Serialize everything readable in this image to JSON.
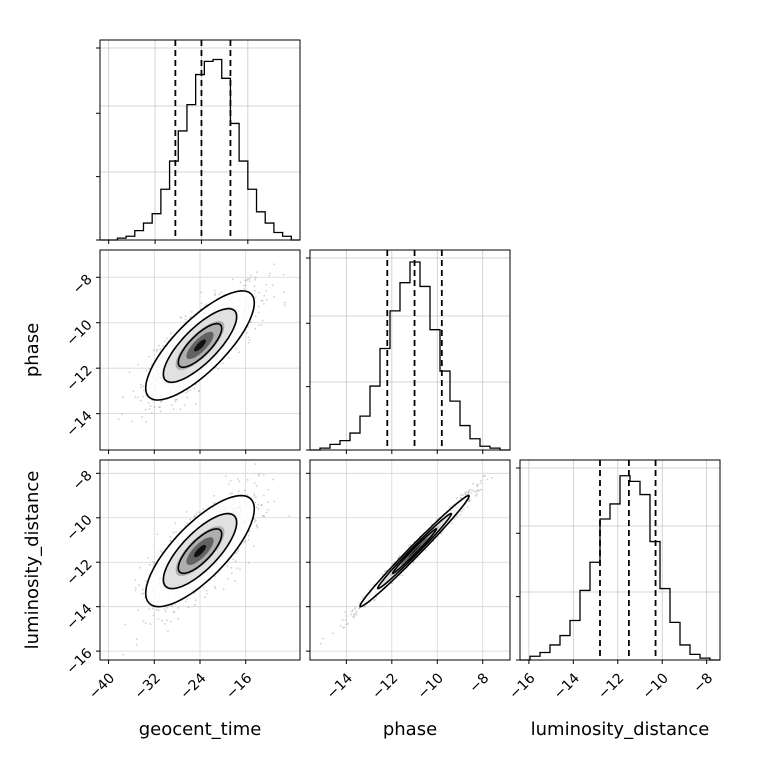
{
  "chart_data": {
    "type": "corner",
    "parameters": [
      "geocent_time",
      "phase",
      "luminosity_distance"
    ],
    "axis_labels": {
      "x": [
        "geocent_time",
        "phase",
        "luminosity_distance"
      ],
      "y": [
        "",
        "phase",
        "luminosity_distance"
      ]
    },
    "ranges": {
      "geocent_time": [
        -41.5,
        -6.5
      ],
      "phase": [
        -15.6,
        -6.8
      ],
      "luminosity_distance": [
        -16.4,
        -7.4
      ]
    },
    "ticks": {
      "geocent_time": [
        -40,
        -32,
        -24,
        -16
      ],
      "phase": [
        -14,
        -12,
        -10,
        -8
      ],
      "luminosity_distance": [
        -16,
        -14,
        -12,
        -10,
        -8
      ]
    },
    "diag_ticks": {
      "geocent_time": [
        -40,
        -32,
        -24,
        -16
      ],
      "phase": [
        -14,
        -12,
        -10,
        -8
      ],
      "luminosity_distance": [
        -16,
        -14,
        -12,
        -10,
        -8
      ]
    },
    "quantiles": {
      "geocent_time": [
        -28.5,
        -24.0,
        -19.0
      ],
      "phase": [
        -12.2,
        -11.0,
        -9.8
      ],
      "luminosity_distance": [
        -12.8,
        -11.5,
        -10.3
      ]
    },
    "histograms": {
      "geocent_time": {
        "bins": [
          -41.5,
          -7.0
        ],
        "counts": [
          0.0,
          0.0,
          0.01,
          0.02,
          0.05,
          0.09,
          0.14,
          0.27,
          0.42,
          0.58,
          0.72,
          0.88,
          0.95,
          0.96,
          0.86,
          0.62,
          0.42,
          0.27,
          0.15,
          0.09,
          0.04,
          0.02,
          0.0
        ]
      },
      "phase": {
        "bins": [
          -15.6,
          -6.8
        ],
        "counts": [
          0.0,
          0.01,
          0.03,
          0.05,
          0.09,
          0.18,
          0.34,
          0.54,
          0.74,
          0.89,
          1.0,
          0.87,
          0.64,
          0.42,
          0.26,
          0.13,
          0.06,
          0.02,
          0.01,
          0.0
        ]
      },
      "luminosity_distance": {
        "bins": [
          -16.4,
          -7.4
        ],
        "counts": [
          0.0,
          0.02,
          0.04,
          0.08,
          0.13,
          0.21,
          0.37,
          0.52,
          0.75,
          0.83,
          0.98,
          0.95,
          0.88,
          0.63,
          0.38,
          0.2,
          0.08,
          0.03,
          0.01,
          0.0
        ]
      }
    },
    "correlations": {
      "phase|geocent_time": 0.78,
      "luminosity_distance|geocent_time": 0.76,
      "luminosity_distance|phase": 0.99
    },
    "grid": true,
    "contour_levels": [
      0.39,
      0.86,
      0.99
    ]
  }
}
